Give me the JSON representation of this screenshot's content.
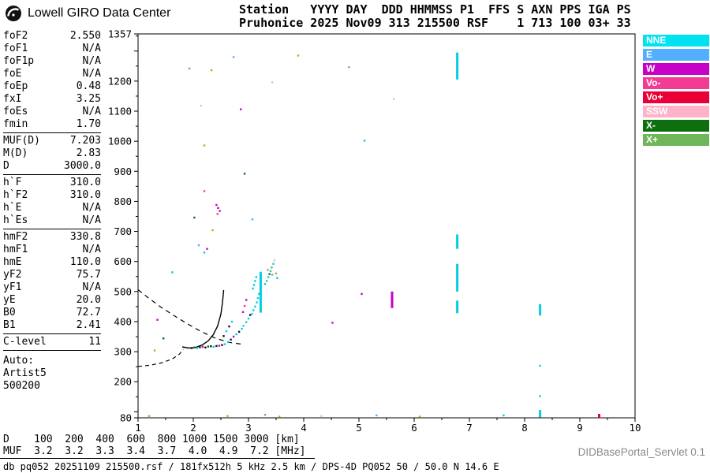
{
  "header": {
    "brand": "Lowell GIRO Data Center",
    "line1": "Station   YYYY DAY  DDD HHMMSS P1  FFS S AXN PPS IGA PS",
    "line2": "Pruhonice 2025 Nov09 313 215500 RSF    1 713 100 03+ 33"
  },
  "params": {
    "groups": [
      {
        "rows": [
          [
            "foF2",
            "2.550"
          ],
          [
            "foF1",
            "N/A"
          ],
          [
            "foF1p",
            "N/A"
          ],
          [
            "foE",
            "N/A"
          ],
          [
            "foEp",
            "0.48"
          ],
          [
            "fxI",
            "3.25"
          ],
          [
            "foEs",
            "N/A"
          ],
          [
            "fmin",
            "1.70"
          ]
        ]
      },
      {
        "rows": [
          [
            "MUF(D)",
            "7.203"
          ],
          [
            "M(D)",
            "2.83"
          ],
          [
            "D",
            "3000.0"
          ]
        ]
      },
      {
        "rows": [
          [
            "h`F",
            "310.0"
          ],
          [
            "h`F2",
            "310.0"
          ],
          [
            "h`E",
            "N/A"
          ],
          [
            "h`Es",
            "N/A"
          ]
        ]
      },
      {
        "rows": [
          [
            "hmF2",
            "330.8"
          ],
          [
            "hmF1",
            "N/A"
          ],
          [
            "hmE",
            "110.0"
          ],
          [
            "yF2",
            "75.7"
          ],
          [
            "yF1",
            "N/A"
          ],
          [
            "yE",
            "20.0"
          ],
          [
            "B0",
            "72.7"
          ],
          [
            "B1",
            "2.41"
          ]
        ]
      },
      {
        "rows": [
          [
            "C-level",
            "11"
          ]
        ]
      }
    ],
    "auto_lines": [
      "Auto:",
      "Artist5",
      "500200"
    ]
  },
  "legend": [
    {
      "label": "NNE",
      "color": "#00E1F2"
    },
    {
      "label": "E",
      "color": "#53AEFF"
    },
    {
      "label": "W",
      "color": "#C702C7"
    },
    {
      "label": "Vo-",
      "color": "#F23C94"
    },
    {
      "label": "Vo+",
      "color": "#EA0037"
    },
    {
      "label": "SSW",
      "color": "#FFB2C8"
    },
    {
      "label": "X-",
      "color": "#0E6F0E"
    },
    {
      "label": "X+",
      "color": "#6FB55A"
    }
  ],
  "dmuf": {
    "rows": [
      {
        "label": "D",
        "values": [
          "100",
          "200",
          "400",
          "600",
          "800",
          "1000",
          "1500",
          "3000"
        ],
        "unit": "[km]"
      },
      {
        "label": "MUF",
        "values": [
          "3.2",
          "3.2",
          "3.3",
          "3.4",
          "3.7",
          "4.0",
          "4.9",
          "7.2"
        ],
        "unit": "[MHz]"
      }
    ]
  },
  "footer": {
    "servlet": "DIDBasePortal_Servlet 0.1",
    "source": "db pq052 20251109 215500.rsf / 181fx512h 5 kHz 2.5 km / DPS-4D PQ052 50 / 50.0 N 14.6 E"
  },
  "chart_data": {
    "type": "scatter",
    "title": "",
    "x_axis": {
      "label": "",
      "unit": "MHz",
      "min": 1,
      "max": 10,
      "ticks": [
        1,
        2,
        3,
        4,
        5,
        6,
        7,
        8,
        9,
        10
      ]
    },
    "y_axis": {
      "label": "",
      "unit": "km",
      "min": 80,
      "max": 1357,
      "tick_labels": [
        1357,
        1200,
        1100,
        1000,
        900,
        800,
        700,
        600,
        500,
        400,
        300,
        200,
        80
      ]
    },
    "colors": {
      "NNE": "#00CFE0",
      "E": "#53AEFF",
      "W": "#C702C7",
      "Vo-": "#F23C94",
      "Vo+": "#EA0037",
      "SSW": "#FFB2C8",
      "X-": "#0E6F0E",
      "X+": "#6FB55A",
      "K": "#151515",
      "N": "#B9A820"
    },
    "curves": {
      "solid": [
        [
          1.8,
          316
        ],
        [
          1.92,
          312
        ],
        [
          2.04,
          314
        ],
        [
          2.16,
          322
        ],
        [
          2.27,
          336
        ],
        [
          2.36,
          356
        ],
        [
          2.44,
          385
        ],
        [
          2.5,
          425
        ],
        [
          2.53,
          465
        ],
        [
          2.55,
          505
        ]
      ],
      "dashed_upper": [
        [
          1.0,
          506
        ],
        [
          1.18,
          480
        ],
        [
          1.4,
          450
        ],
        [
          1.65,
          420
        ],
        [
          1.9,
          392
        ],
        [
          2.15,
          366
        ],
        [
          2.4,
          345
        ],
        [
          2.65,
          331
        ],
        [
          2.88,
          325
        ]
      ],
      "dashed_lower": [
        [
          1.0,
          251
        ],
        [
          1.22,
          255
        ],
        [
          1.45,
          264
        ],
        [
          1.62,
          276
        ],
        [
          1.75,
          292
        ],
        [
          1.82,
          308
        ]
      ]
    },
    "strips": [
      [
        6.78,
        1205,
        1295,
        "NNE"
      ],
      [
        6.78,
        642,
        690,
        "NNE"
      ],
      [
        6.78,
        500,
        592,
        "NNE"
      ],
      [
        6.78,
        428,
        470,
        "NNE"
      ],
      [
        8.28,
        420,
        458,
        "NNE"
      ],
      [
        8.28,
        82,
        106,
        "NNE"
      ],
      [
        5.6,
        445,
        500,
        "W"
      ],
      [
        3.22,
        430,
        566,
        "NNE"
      ],
      [
        9.35,
        80,
        93,
        "Vo+"
      ]
    ],
    "points": [
      [
        1.97,
        312,
        "K"
      ],
      [
        2.02,
        314,
        "X-"
      ],
      [
        2.07,
        312,
        "NNE"
      ],
      [
        2.12,
        315,
        "K"
      ],
      [
        2.17,
        316,
        "W"
      ],
      [
        2.22,
        314,
        "K"
      ],
      [
        2.27,
        317,
        "X-"
      ],
      [
        2.32,
        318,
        "K"
      ],
      [
        2.37,
        316,
        "NNE"
      ],
      [
        2.42,
        319,
        "K"
      ],
      [
        2.47,
        320,
        "W"
      ],
      [
        2.52,
        322,
        "K"
      ],
      [
        2.57,
        325,
        "NNE"
      ],
      [
        2.63,
        332,
        "NNE"
      ],
      [
        2.68,
        340,
        "K"
      ],
      [
        2.73,
        350,
        "W"
      ],
      [
        2.78,
        358,
        "NNE"
      ],
      [
        2.83,
        366,
        "K"
      ],
      [
        2.88,
        376,
        "NNE"
      ],
      [
        2.91,
        386,
        "E"
      ],
      [
        2.96,
        398,
        "NNE"
      ],
      [
        3.0,
        410,
        "NNE"
      ],
      [
        3.03,
        422,
        "K"
      ],
      [
        2.55,
        352,
        "K"
      ],
      [
        2.6,
        368,
        "NNE"
      ],
      [
        2.65,
        384,
        "K"
      ],
      [
        2.7,
        400,
        "NNE"
      ],
      [
        2.9,
        432,
        "W"
      ],
      [
        2.93,
        452,
        "Vo-"
      ],
      [
        2.96,
        472,
        "W"
      ],
      [
        3.06,
        425,
        "NNE"
      ],
      [
        3.09,
        438,
        "NNE"
      ],
      [
        3.12,
        450,
        "NNE"
      ],
      [
        3.15,
        464,
        "NNE"
      ],
      [
        3.17,
        478,
        "NNE"
      ],
      [
        3.19,
        492,
        "NNE"
      ],
      [
        3.08,
        510,
        "NNE"
      ],
      [
        3.1,
        522,
        "NNE"
      ],
      [
        3.12,
        535,
        "NNE"
      ],
      [
        3.14,
        548,
        "NNE"
      ],
      [
        3.3,
        525,
        "NNE"
      ],
      [
        3.33,
        535,
        "X+"
      ],
      [
        3.36,
        548,
        "NNE"
      ],
      [
        3.38,
        558,
        "X-"
      ],
      [
        3.4,
        568,
        "NNE"
      ],
      [
        3.42,
        580,
        "X+"
      ],
      [
        3.45,
        592,
        "NNE"
      ],
      [
        3.47,
        604,
        "SSW"
      ],
      [
        3.5,
        560,
        "N"
      ],
      [
        3.52,
        545,
        "NNE"
      ],
      [
        3.35,
        572,
        "N"
      ],
      [
        3.43,
        556,
        "E"
      ],
      [
        2.33,
        1236,
        "N"
      ],
      [
        1.93,
        1242,
        "X+"
      ],
      [
        2.73,
        1280,
        "E"
      ],
      [
        3.9,
        1285,
        "N"
      ],
      [
        2.86,
        1106,
        "W"
      ],
      [
        2.14,
        1118,
        "SSW"
      ],
      [
        3.43,
        1196,
        "SSW"
      ],
      [
        4.82,
        1246,
        "X+"
      ],
      [
        5.63,
        1140,
        "SSW"
      ],
      [
        5.1,
        1002,
        "NNE"
      ],
      [
        2.93,
        892,
        "X-"
      ],
      [
        2.2,
        986,
        "N"
      ],
      [
        2.2,
        834,
        "Vo-"
      ],
      [
        2.42,
        788,
        "W"
      ],
      [
        2.45,
        778,
        "W"
      ],
      [
        2.48,
        768,
        "W"
      ],
      [
        2.44,
        758,
        "Vo-"
      ],
      [
        2.02,
        746,
        "X-"
      ],
      [
        3.07,
        740,
        "E"
      ],
      [
        2.35,
        704,
        "N"
      ],
      [
        2.1,
        654,
        "E"
      ],
      [
        2.25,
        642,
        "W"
      ],
      [
        2.2,
        630,
        "NNE"
      ],
      [
        1.62,
        564,
        "NNE"
      ],
      [
        1.35,
        406,
        "W"
      ],
      [
        1.46,
        344,
        "X-"
      ],
      [
        1.3,
        304,
        "N"
      ],
      [
        4.52,
        396,
        "W"
      ],
      [
        5.05,
        492,
        "W"
      ],
      [
        8.28,
        253,
        "NNE"
      ],
      [
        8.28,
        152,
        "NNE"
      ],
      [
        1.2,
        86,
        "N"
      ],
      [
        2.62,
        86,
        "N"
      ],
      [
        3.3,
        90,
        "X+"
      ],
      [
        3.56,
        84,
        "N"
      ],
      [
        4.32,
        86,
        "SSW"
      ],
      [
        5.32,
        88,
        "E"
      ],
      [
        7.62,
        88,
        "NNE"
      ],
      [
        6.1,
        84,
        "N"
      ]
    ]
  }
}
